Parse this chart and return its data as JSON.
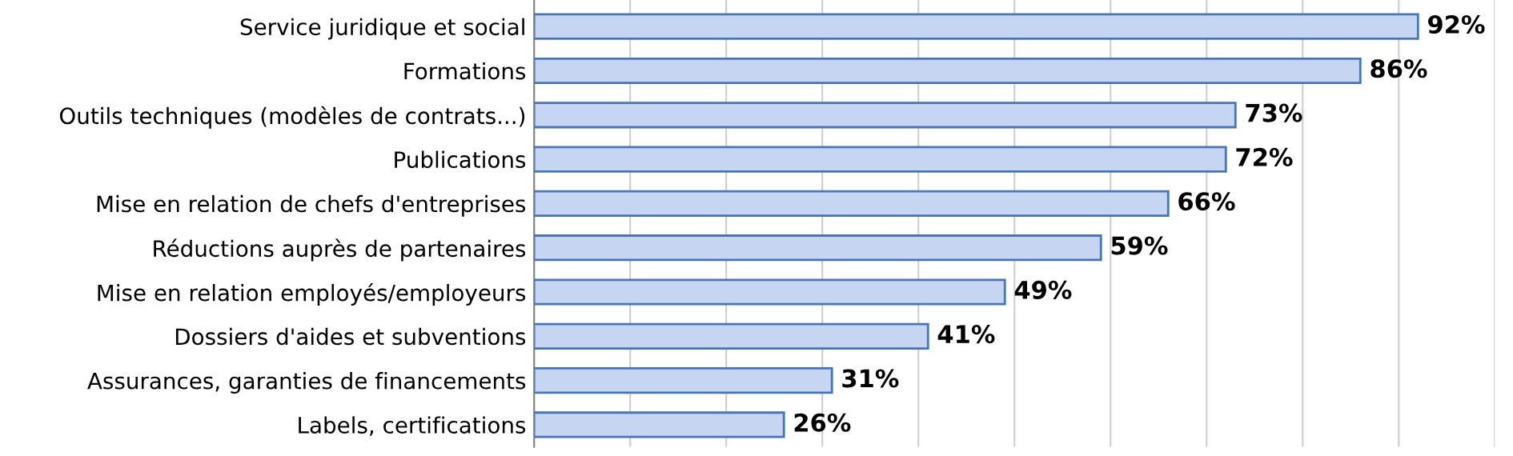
{
  "chart_data": {
    "type": "bar",
    "orientation": "horizontal",
    "categories": [
      "Service juridique et social",
      "Formations",
      "Outils techniques (modèles de contrats...)",
      "Publications",
      "Mise en relation de chefs d'entreprises",
      "Réductions auprès de partenaires",
      "Mise en relation employés/employeurs",
      "Dossiers d'aides et subventions",
      "Assurances, garanties de financements",
      "Labels, certifications"
    ],
    "values": [
      92,
      86,
      73,
      72,
      66,
      59,
      49,
      41,
      31,
      26
    ],
    "value_labels": [
      "92%",
      "86%",
      "73%",
      "72%",
      "66%",
      "59%",
      "49%",
      "41%",
      "31%",
      "26%"
    ],
    "color": "#c6d6f2",
    "xlim": [
      0,
      100
    ],
    "xticks": [
      {
        "value": 0,
        "label": null
      },
      {
        "value": 10,
        "label": null
      },
      {
        "value": 20,
        "label": null
      },
      {
        "value": 30,
        "label": null
      },
      {
        "value": 40,
        "label": null
      },
      {
        "value": 50,
        "label": null
      },
      {
        "value": 60,
        "label": null
      },
      {
        "value": 70,
        "label": null
      },
      {
        "value": 80,
        "label": null
      },
      {
        "value": 90,
        "label": null
      },
      {
        "value": 100,
        "label": null
      }
    ],
    "grid": "x",
    "tick_labels": "y"
  }
}
